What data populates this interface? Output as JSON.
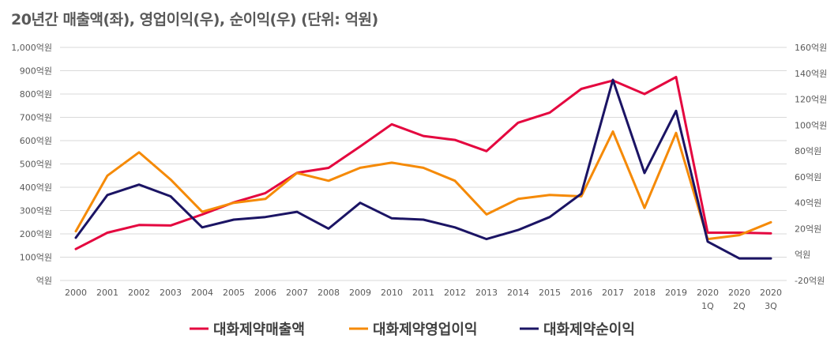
{
  "chart_data": {
    "type": "line",
    "title": "20년간 매출액(좌), 영업이익(우), 순이익(우) (단위: 억원)",
    "categories": [
      "2000",
      "2001",
      "2002",
      "2003",
      "2004",
      "2005",
      "2006",
      "2007",
      "2008",
      "2009",
      "2010",
      "2011",
      "2012",
      "2013",
      "2014",
      "2015",
      "2016",
      "2017",
      "2018",
      "2019",
      "2020\n1Q",
      "2020\n2Q",
      "2020\n3Q"
    ],
    "y_left": {
      "ylim": [
        0,
        1000
      ],
      "ticks": [
        "억원",
        "100억원",
        "200억원",
        "300억원",
        "400억원",
        "500억원",
        "600억원",
        "700억원",
        "800억원",
        "900억원",
        "1,000억원"
      ]
    },
    "y_right": {
      "ylim": [
        -20,
        160
      ],
      "ticks": [
        "-20억원",
        "억원",
        "20억원",
        "40억원",
        "60억원",
        "80억원",
        "100억원",
        "120억원",
        "140억원",
        "160억원"
      ]
    },
    "series": [
      {
        "name": "대화제약매출액",
        "axis": "left",
        "color": "#e4073f",
        "values": [
          135,
          205,
          238,
          236,
          283,
          335,
          375,
          462,
          483,
          575,
          670,
          620,
          603,
          555,
          677,
          720,
          822,
          858,
          800,
          873,
          205,
          205,
          202
        ]
      },
      {
        "name": "대화제약영업이익",
        "axis": "right",
        "color": "#f58a07",
        "values": [
          18,
          61,
          79,
          58,
          33,
          40,
          43,
          63,
          57,
          67,
          71,
          67,
          57,
          31,
          43,
          46,
          45,
          95,
          36,
          94,
          12,
          15,
          25
        ]
      },
      {
        "name": "대화제약순이익",
        "axis": "right",
        "color": "#1b1464",
        "values": [
          13,
          46,
          54,
          45,
          21,
          27,
          29,
          33,
          20,
          40,
          28,
          27,
          21,
          12,
          19,
          29,
          47,
          135,
          63,
          111,
          10,
          -3,
          -3
        ]
      }
    ],
    "grid": true,
    "legend": "bottom"
  }
}
